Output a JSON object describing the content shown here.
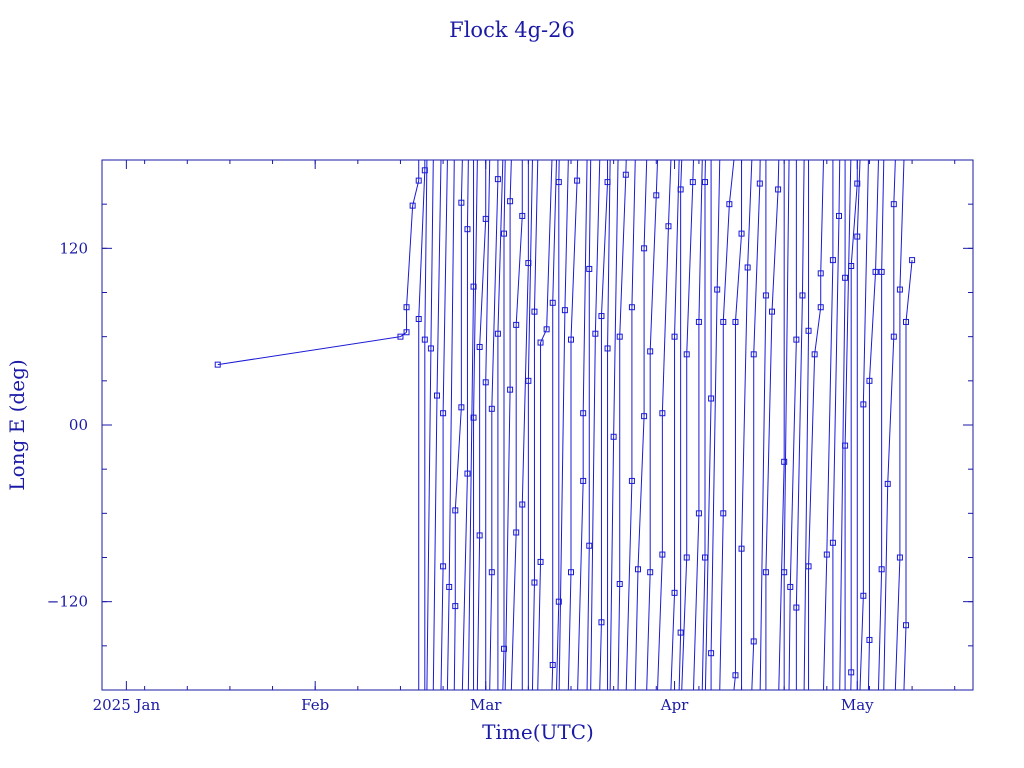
{
  "chart_data": {
    "type": "line",
    "title": "Flock 4g-26",
    "xlabel": "Time(UTC)",
    "ylabel": "Long E (deg)",
    "x_range": [
      "2024-12-28",
      "2025-05-20"
    ],
    "ylim": [
      -180,
      180
    ],
    "x_tick_labels": [
      {
        "date": "2025-01-01",
        "label": "2025 Jan"
      },
      {
        "date": "2025-02-01",
        "label": "Feb"
      },
      {
        "date": "2025-03-01",
        "label": "Mar"
      },
      {
        "date": "2025-04-01",
        "label": "Apr"
      },
      {
        "date": "2025-05-01",
        "label": "May"
      }
    ],
    "y_tick_labels": [
      {
        "value": 120,
        "label": "120"
      },
      {
        "value": 0,
        "label": "00"
      },
      {
        "value": -120,
        "label": "−120"
      }
    ],
    "grid": false,
    "marker": "square",
    "series": [
      {
        "color": "#1a1ad6",
        "points": [
          {
            "x": "2025-01-16",
            "y": 41
          },
          {
            "x": "2025-02-15",
            "y": 60
          },
          {
            "x": "2025-02-16",
            "y": 63
          },
          {
            "x": "2025-02-16",
            "y": 80
          },
          {
            "x": "2025-02-17",
            "y": 149
          },
          {
            "x": "2025-02-18",
            "y": 166
          },
          {
            "x": "2025-02-18",
            "y": 72
          },
          {
            "x": "2025-02-19",
            "y": 173
          },
          {
            "x": "2025-02-19",
            "y": 58
          },
          {
            "x": "2025-02-20",
            "y": 52
          },
          {
            "x": "2025-02-21",
            "y": 20
          },
          {
            "x": "2025-02-22",
            "y": -96
          },
          {
            "x": "2025-02-22",
            "y": 8
          },
          {
            "x": "2025-02-23",
            "y": -110
          },
          {
            "x": "2025-02-24",
            "y": -123
          },
          {
            "x": "2025-02-24",
            "y": -58
          },
          {
            "x": "2025-02-25",
            "y": 12
          },
          {
            "x": "2025-02-25",
            "y": 151
          },
          {
            "x": "2025-02-26",
            "y": -33
          },
          {
            "x": "2025-02-26",
            "y": 133
          },
          {
            "x": "2025-02-27",
            "y": 94
          },
          {
            "x": "2025-02-27",
            "y": 5
          },
          {
            "x": "2025-02-28",
            "y": -75
          },
          {
            "x": "2025-02-28",
            "y": 53
          },
          {
            "x": "2025-03-01",
            "y": 140
          },
          {
            "x": "2025-03-01",
            "y": 29
          },
          {
            "x": "2025-03-02",
            "y": -100
          },
          {
            "x": "2025-03-02",
            "y": 11
          },
          {
            "x": "2025-03-03",
            "y": 167
          },
          {
            "x": "2025-03-03",
            "y": 62
          },
          {
            "x": "2025-03-04",
            "y": -152
          },
          {
            "x": "2025-03-04",
            "y": 130
          },
          {
            "x": "2025-03-05",
            "y": 24
          },
          {
            "x": "2025-03-05",
            "y": 152
          },
          {
            "x": "2025-03-06",
            "y": -73
          },
          {
            "x": "2025-03-06",
            "y": 68
          },
          {
            "x": "2025-03-07",
            "y": 142
          },
          {
            "x": "2025-03-07",
            "y": -54
          },
          {
            "x": "2025-03-08",
            "y": 110
          },
          {
            "x": "2025-03-08",
            "y": 30
          },
          {
            "x": "2025-03-09",
            "y": -107
          },
          {
            "x": "2025-03-09",
            "y": 77
          },
          {
            "x": "2025-03-10",
            "y": -93
          },
          {
            "x": "2025-03-10",
            "y": 56
          },
          {
            "x": "2025-03-11",
            "y": 65
          },
          {
            "x": "2025-03-12",
            "y": -163
          },
          {
            "x": "2025-03-12",
            "y": 83
          },
          {
            "x": "2025-03-13",
            "y": -120
          },
          {
            "x": "2025-03-13",
            "y": 165
          },
          {
            "x": "2025-03-14",
            "y": 78
          },
          {
            "x": "2025-03-15",
            "y": -100
          },
          {
            "x": "2025-03-15",
            "y": 58
          },
          {
            "x": "2025-03-16",
            "y": 166
          },
          {
            "x": "2025-03-17",
            "y": -38
          },
          {
            "x": "2025-03-17",
            "y": 8
          },
          {
            "x": "2025-03-18",
            "y": -82
          },
          {
            "x": "2025-03-18",
            "y": 106
          },
          {
            "x": "2025-03-19",
            "y": 62
          },
          {
            "x": "2025-03-20",
            "y": -134
          },
          {
            "x": "2025-03-20",
            "y": 74
          },
          {
            "x": "2025-03-21",
            "y": 165
          },
          {
            "x": "2025-03-21",
            "y": 52
          },
          {
            "x": "2025-03-22",
            "y": -8
          },
          {
            "x": "2025-03-23",
            "y": -108
          },
          {
            "x": "2025-03-23",
            "y": 60
          },
          {
            "x": "2025-03-24",
            "y": 170
          },
          {
            "x": "2025-03-25",
            "y": -38
          },
          {
            "x": "2025-03-25",
            "y": 80
          },
          {
            "x": "2025-03-26",
            "y": -98
          },
          {
            "x": "2025-03-27",
            "y": 6
          },
          {
            "x": "2025-03-27",
            "y": 120
          },
          {
            "x": "2025-03-28",
            "y": -100
          },
          {
            "x": "2025-03-28",
            "y": 50
          },
          {
            "x": "2025-03-29",
            "y": 156
          },
          {
            "x": "2025-03-30",
            "y": -88
          },
          {
            "x": "2025-03-30",
            "y": 8
          },
          {
            "x": "2025-03-31",
            "y": 135
          },
          {
            "x": "2025-04-01",
            "y": -114
          },
          {
            "x": "2025-04-01",
            "y": 60
          },
          {
            "x": "2025-04-02",
            "y": -141
          },
          {
            "x": "2025-04-02",
            "y": 160
          },
          {
            "x": "2025-04-03",
            "y": -90
          },
          {
            "x": "2025-04-03",
            "y": 48
          },
          {
            "x": "2025-04-04",
            "y": 165
          },
          {
            "x": "2025-04-05",
            "y": -60
          },
          {
            "x": "2025-04-05",
            "y": 70
          },
          {
            "x": "2025-04-06",
            "y": -90
          },
          {
            "x": "2025-04-06",
            "y": 165
          },
          {
            "x": "2025-04-07",
            "y": 18
          },
          {
            "x": "2025-04-07",
            "y": -155
          },
          {
            "x": "2025-04-08",
            "y": 92
          },
          {
            "x": "2025-04-09",
            "y": -60
          },
          {
            "x": "2025-04-09",
            "y": 70
          },
          {
            "x": "2025-04-10",
            "y": 150
          },
          {
            "x": "2025-04-11",
            "y": -170
          },
          {
            "x": "2025-04-11",
            "y": 70
          },
          {
            "x": "2025-04-12",
            "y": 130
          },
          {
            "x": "2025-04-12",
            "y": -84
          },
          {
            "x": "2025-04-13",
            "y": 107
          },
          {
            "x": "2025-04-14",
            "y": -147
          },
          {
            "x": "2025-04-14",
            "y": 48
          },
          {
            "x": "2025-04-15",
            "y": 164
          },
          {
            "x": "2025-04-16",
            "y": 88
          },
          {
            "x": "2025-04-16",
            "y": -100
          },
          {
            "x": "2025-04-17",
            "y": 77
          },
          {
            "x": "2025-04-18",
            "y": 160
          },
          {
            "x": "2025-04-19",
            "y": -25
          },
          {
            "x": "2025-04-19",
            "y": -100
          },
          {
            "x": "2025-04-20",
            "y": -110
          },
          {
            "x": "2025-04-21",
            "y": 58
          },
          {
            "x": "2025-04-21",
            "y": -124
          },
          {
            "x": "2025-04-22",
            "y": 88
          },
          {
            "x": "2025-04-23",
            "y": 64
          },
          {
            "x": "2025-04-23",
            "y": -96
          },
          {
            "x": "2025-04-24",
            "y": 48
          },
          {
            "x": "2025-04-25",
            "y": 80
          },
          {
            "x": "2025-04-25",
            "y": 103
          },
          {
            "x": "2025-04-26",
            "y": -88
          },
          {
            "x": "2025-04-27",
            "y": 112
          },
          {
            "x": "2025-04-27",
            "y": -80
          },
          {
            "x": "2025-04-28",
            "y": 142
          },
          {
            "x": "2025-04-29",
            "y": 100
          },
          {
            "x": "2025-04-29",
            "y": -14
          },
          {
            "x": "2025-04-30",
            "y": -168
          },
          {
            "x": "2025-04-30",
            "y": 108
          },
          {
            "x": "2025-05-01",
            "y": 164
          },
          {
            "x": "2025-05-01",
            "y": 128
          },
          {
            "x": "2025-05-02",
            "y": -116
          },
          {
            "x": "2025-05-02",
            "y": 14
          },
          {
            "x": "2025-05-03",
            "y": -146
          },
          {
            "x": "2025-05-03",
            "y": 30
          },
          {
            "x": "2025-05-04",
            "y": 104
          },
          {
            "x": "2025-05-05",
            "y": -98
          },
          {
            "x": "2025-05-05",
            "y": 104
          },
          {
            "x": "2025-05-06",
            "y": -40
          },
          {
            "x": "2025-05-07",
            "y": 60
          },
          {
            "x": "2025-05-07",
            "y": 150
          },
          {
            "x": "2025-05-08",
            "y": -90
          },
          {
            "x": "2025-05-08",
            "y": 92
          },
          {
            "x": "2025-05-09",
            "y": -136
          },
          {
            "x": "2025-05-09",
            "y": 70
          },
          {
            "x": "2025-05-10",
            "y": 112
          }
        ]
      }
    ]
  }
}
